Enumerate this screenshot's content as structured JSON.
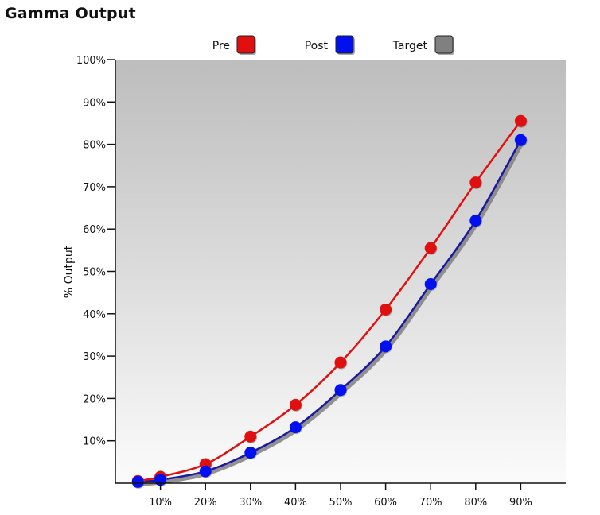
{
  "chart_data": {
    "type": "line",
    "title": "Gamma Output",
    "xlabel": "",
    "ylabel": "% Output",
    "xlim": [
      0,
      100
    ],
    "ylim": [
      0,
      100
    ],
    "x_ticks": [
      "10%",
      "20%",
      "30%",
      "40%",
      "50%",
      "60%",
      "70%",
      "80%",
      "90%"
    ],
    "x_tick_values": [
      10,
      20,
      30,
      40,
      50,
      60,
      70,
      80,
      90
    ],
    "y_ticks": [
      "10%",
      "20%",
      "30%",
      "40%",
      "50%",
      "60%",
      "70%",
      "80%",
      "90%",
      "100%"
    ],
    "y_tick_values": [
      10,
      20,
      30,
      40,
      50,
      60,
      70,
      80,
      90,
      100
    ],
    "x": [
      5,
      10,
      20,
      30,
      40,
      50,
      60,
      70,
      80,
      90
    ],
    "grid": false,
    "legend_position": "top-center",
    "series": [
      {
        "name": "Pre",
        "color": "#e01010",
        "values": [
          0.5,
          1.5,
          4.5,
          11,
          18.5,
          28.5,
          41,
          55.5,
          71,
          85.5
        ]
      },
      {
        "name": "Post",
        "color": "#0010ee",
        "values": [
          0.3,
          0.8,
          2.8,
          7.2,
          13.2,
          22,
          32.3,
          47,
          62,
          81
        ]
      },
      {
        "name": "Target",
        "color": "#808080",
        "values": [
          0.3,
          0.8,
          2.8,
          7.2,
          13.2,
          22,
          32.3,
          47,
          62,
          81
        ]
      }
    ]
  }
}
